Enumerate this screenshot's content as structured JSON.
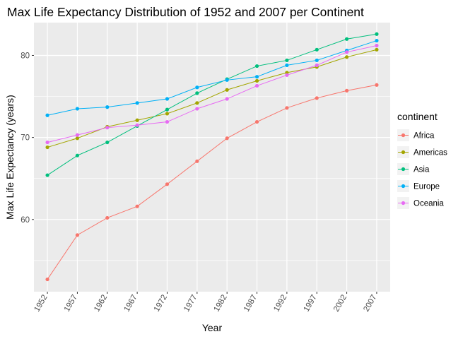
{
  "chart_data": {
    "type": "line",
    "title": "Max Life Expectancy Distribution of 1952 and 2007 per Continent",
    "xlabel": "Year",
    "ylabel": "Max Life Expectancy (years)",
    "x": [
      1952,
      1957,
      1962,
      1967,
      1972,
      1977,
      1982,
      1987,
      1992,
      1997,
      2002,
      2007
    ],
    "xlim": [
      1949.75,
      2009.25
    ],
    "ylim": [
      51.2,
      84.0
    ],
    "yticks": [
      60,
      70,
      80
    ],
    "grid": true,
    "legend": {
      "title": "continent",
      "position": "right"
    },
    "series": [
      {
        "name": "Africa",
        "color": "#F8766D",
        "values": [
          52.7,
          58.1,
          60.2,
          61.6,
          64.3,
          67.1,
          69.9,
          71.9,
          73.6,
          74.8,
          75.7,
          76.4
        ]
      },
      {
        "name": "Americas",
        "color": "#A3A500",
        "values": [
          68.8,
          69.9,
          71.3,
          72.1,
          72.9,
          74.2,
          75.8,
          76.9,
          77.9,
          78.6,
          79.8,
          80.7
        ]
      },
      {
        "name": "Asia",
        "color": "#00BF7D",
        "values": [
          65.4,
          67.8,
          69.4,
          71.4,
          73.4,
          75.4,
          77.1,
          78.7,
          79.4,
          80.7,
          82.0,
          82.6
        ]
      },
      {
        "name": "Europe",
        "color": "#00B0F6",
        "values": [
          72.7,
          73.5,
          73.7,
          74.2,
          74.7,
          76.1,
          77.0,
          77.4,
          78.8,
          79.4,
          80.6,
          81.8
        ]
      },
      {
        "name": "Oceania",
        "color": "#E76BF3",
        "values": [
          69.4,
          70.3,
          71.2,
          71.5,
          71.9,
          73.5,
          74.7,
          76.3,
          77.6,
          78.8,
          80.4,
          81.2
        ]
      }
    ]
  }
}
